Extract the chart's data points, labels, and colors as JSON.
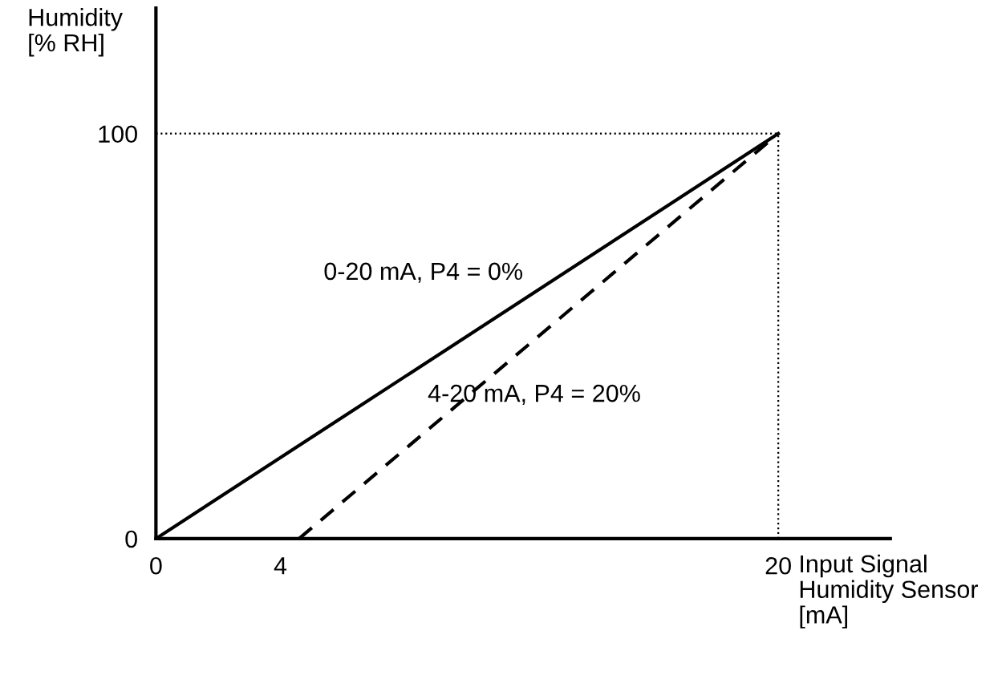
{
  "chart_data": {
    "type": "line",
    "xlabel": "Input Signal\nHumidity Sensor\n[mA]",
    "ylabel": "Humidity\n[% RH]",
    "xlim": [
      0,
      23.6
    ],
    "ylim": [
      0,
      131
    ],
    "xticks": [
      0,
      4,
      20
    ],
    "yticks": [
      0,
      100
    ],
    "series": [
      {
        "name": "0-20 mA, P4 = 0%",
        "color": "#000000",
        "x": [
          0,
          20
        ],
        "values": [
          0,
          100
        ],
        "line_style": "solid"
      },
      {
        "name": "4-20 mA, P4 = 20%",
        "color": "#000000",
        "x": [
          4.6,
          20
        ],
        "values": [
          0,
          100
        ],
        "line_style": "dashed"
      }
    ],
    "ref_lines": [
      {
        "axis": "y",
        "value": 100,
        "line_style": "dotted",
        "color": "#000000"
      },
      {
        "axis": "x",
        "value": 20,
        "line_style": "dotted",
        "color": "#000000"
      }
    ],
    "grid": false,
    "legend": false
  }
}
